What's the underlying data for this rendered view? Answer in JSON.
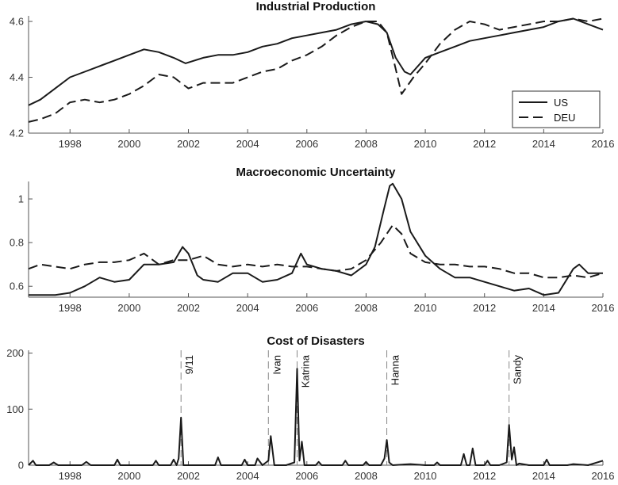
{
  "chart_data": [
    {
      "type": "line",
      "title": "Industrial Production",
      "xlim": [
        1996.6,
        2016.0
      ],
      "ylim": [
        4.2,
        4.62
      ],
      "xticks": [
        1998,
        2000,
        2002,
        2004,
        2006,
        2008,
        2010,
        2012,
        2014,
        2016
      ],
      "yticks": [
        4.2,
        4.4,
        4.6
      ],
      "ytick_labels": [
        "4.2",
        "4.4",
        "4.6"
      ],
      "legend": {
        "position": "bottom-right",
        "entries": [
          "US",
          "DEU"
        ]
      },
      "series": [
        {
          "name": "US",
          "style": "solid",
          "x": [
            1996.6,
            1997.0,
            1997.5,
            1998.0,
            1998.5,
            1999.0,
            1999.5,
            2000.0,
            2000.5,
            2001.0,
            2001.5,
            2001.9,
            2002.5,
            2003.0,
            2003.5,
            2004.0,
            2004.5,
            2005.0,
            2005.5,
            2006.0,
            2006.5,
            2007.0,
            2007.5,
            2008.0,
            2008.4,
            2008.7,
            2009.0,
            2009.3,
            2009.5,
            2010.0,
            2010.5,
            2011.0,
            2011.5,
            2012.0,
            2012.5,
            2013.0,
            2013.5,
            2014.0,
            2014.5,
            2015.0,
            2015.5,
            2016.0
          ],
          "values": [
            4.3,
            4.32,
            4.36,
            4.4,
            4.42,
            4.44,
            4.46,
            4.48,
            4.5,
            4.49,
            4.47,
            4.45,
            4.47,
            4.48,
            4.48,
            4.49,
            4.51,
            4.52,
            4.54,
            4.55,
            4.56,
            4.57,
            4.59,
            4.6,
            4.59,
            4.56,
            4.47,
            4.42,
            4.41,
            4.47,
            4.49,
            4.51,
            4.53,
            4.54,
            4.55,
            4.56,
            4.57,
            4.58,
            4.6,
            4.61,
            4.59,
            4.57
          ]
        },
        {
          "name": "DEU",
          "style": "dashed",
          "x": [
            1996.6,
            1997.0,
            1997.5,
            1998.0,
            1998.5,
            1999.0,
            1999.5,
            2000.0,
            2000.5,
            2001.0,
            2001.5,
            2002.0,
            2002.5,
            2003.0,
            2003.5,
            2004.0,
            2004.5,
            2005.0,
            2005.5,
            2006.0,
            2006.5,
            2007.0,
            2007.5,
            2008.0,
            2008.4,
            2008.7,
            2009.0,
            2009.2,
            2009.4,
            2009.6,
            2010.0,
            2010.5,
            2011.0,
            2011.5,
            2012.0,
            2012.5,
            2013.0,
            2013.5,
            2014.0,
            2014.5,
            2015.0,
            2015.5,
            2016.0
          ],
          "values": [
            4.24,
            4.25,
            4.27,
            4.31,
            4.32,
            4.31,
            4.32,
            4.34,
            4.37,
            4.41,
            4.4,
            4.36,
            4.38,
            4.38,
            4.38,
            4.4,
            4.42,
            4.43,
            4.46,
            4.48,
            4.51,
            4.55,
            4.58,
            4.6,
            4.6,
            4.56,
            4.43,
            4.34,
            4.37,
            4.4,
            4.45,
            4.52,
            4.57,
            4.6,
            4.59,
            4.57,
            4.58,
            4.59,
            4.6,
            4.6,
            4.61,
            4.6,
            4.61
          ]
        }
      ]
    },
    {
      "type": "line",
      "title": "Macroeconomic Uncertainty",
      "xlim": [
        1996.6,
        2016.0
      ],
      "ylim": [
        0.55,
        1.08
      ],
      "xticks": [
        1998,
        2000,
        2002,
        2004,
        2006,
        2008,
        2010,
        2012,
        2014,
        2016
      ],
      "yticks": [
        0.6,
        0.8,
        1.0
      ],
      "ytick_labels": [
        "0.6",
        "0.8",
        "1"
      ],
      "series": [
        {
          "name": "US",
          "style": "solid",
          "x": [
            1996.6,
            1997.0,
            1997.5,
            1998.0,
            1998.5,
            1999.0,
            1999.5,
            2000.0,
            2000.5,
            2001.0,
            2001.5,
            2001.8,
            2002.0,
            2002.3,
            2002.5,
            2003.0,
            2003.5,
            2004.0,
            2004.5,
            2005.0,
            2005.5,
            2005.8,
            2006.0,
            2006.5,
            2007.0,
            2007.5,
            2008.0,
            2008.3,
            2008.6,
            2008.8,
            2008.9,
            2009.2,
            2009.5,
            2010.0,
            2010.5,
            2011.0,
            2011.5,
            2012.0,
            2012.5,
            2013.0,
            2013.5,
            2014.0,
            2014.5,
            2015.0,
            2015.2,
            2015.5,
            2016.0
          ],
          "values": [
            0.56,
            0.56,
            0.56,
            0.57,
            0.6,
            0.64,
            0.62,
            0.63,
            0.7,
            0.7,
            0.71,
            0.78,
            0.75,
            0.65,
            0.63,
            0.62,
            0.66,
            0.66,
            0.62,
            0.63,
            0.66,
            0.75,
            0.7,
            0.68,
            0.67,
            0.65,
            0.7,
            0.78,
            0.95,
            1.06,
            1.07,
            1.0,
            0.85,
            0.74,
            0.68,
            0.64,
            0.64,
            0.62,
            0.6,
            0.58,
            0.59,
            0.56,
            0.57,
            0.68,
            0.7,
            0.66,
            0.66
          ]
        },
        {
          "name": "DEU",
          "style": "dashed",
          "x": [
            1996.6,
            1997.0,
            1997.5,
            1998.0,
            1998.5,
            1999.0,
            1999.5,
            2000.0,
            2000.5,
            2001.0,
            2001.5,
            2002.0,
            2002.5,
            2003.0,
            2003.5,
            2004.0,
            2004.5,
            2005.0,
            2005.5,
            2006.0,
            2006.5,
            2007.0,
            2007.5,
            2008.0,
            2008.5,
            2008.9,
            2009.2,
            2009.5,
            2010.0,
            2010.5,
            2011.0,
            2011.5,
            2012.0,
            2012.5,
            2013.0,
            2013.5,
            2014.0,
            2014.5,
            2015.0,
            2015.5,
            2016.0
          ],
          "values": [
            0.68,
            0.7,
            0.69,
            0.68,
            0.7,
            0.71,
            0.71,
            0.72,
            0.75,
            0.7,
            0.72,
            0.72,
            0.74,
            0.7,
            0.69,
            0.7,
            0.69,
            0.7,
            0.69,
            0.69,
            0.68,
            0.67,
            0.68,
            0.72,
            0.8,
            0.88,
            0.84,
            0.75,
            0.71,
            0.7,
            0.7,
            0.69,
            0.69,
            0.68,
            0.66,
            0.66,
            0.64,
            0.64,
            0.65,
            0.64,
            0.66
          ]
        }
      ]
    },
    {
      "type": "line",
      "title": "Cost of Disasters",
      "xlim": [
        1996.6,
        2016.0
      ],
      "ylim": [
        0,
        205
      ],
      "xticks": [
        1998,
        2000,
        2002,
        2004,
        2006,
        2008,
        2010,
        2012,
        2014,
        2016
      ],
      "yticks": [
        0,
        100,
        200
      ],
      "ytick_labels": [
        "0",
        "100",
        "200"
      ],
      "annotations": [
        {
          "label": "9/11",
          "x": 2001.75
        },
        {
          "label": "Ivan",
          "x": 2004.7
        },
        {
          "label": "Katrina",
          "x": 2005.67
        },
        {
          "label": "Hanna",
          "x": 2008.7
        },
        {
          "label": "Sandy",
          "x": 2012.83
        }
      ],
      "series": [
        {
          "name": "Cost of Disasters",
          "style": "solid",
          "x": [
            1996.6,
            1996.75,
            1996.85,
            1997.3,
            1997.45,
            1997.6,
            1998.0,
            1998.4,
            1998.55,
            1998.7,
            1999.3,
            1999.5,
            1999.6,
            1999.7,
            2000.3,
            2000.8,
            2000.9,
            2001.0,
            2001.4,
            2001.5,
            2001.6,
            2001.67,
            2001.75,
            2001.83,
            2002.3,
            2002.9,
            2003.0,
            2003.1,
            2003.7,
            2003.8,
            2003.9,
            2004.0,
            2004.25,
            2004.33,
            2004.5,
            2004.7,
            2004.78,
            2004.9,
            2005.3,
            2005.58,
            2005.67,
            2005.75,
            2005.83,
            2005.92,
            2006.3,
            2006.4,
            2006.5,
            2007.2,
            2007.3,
            2007.4,
            2007.9,
            2008.0,
            2008.1,
            2008.5,
            2008.62,
            2008.7,
            2008.78,
            2008.9,
            2009.5,
            2010.0,
            2010.3,
            2010.4,
            2010.5,
            2011.0,
            2011.2,
            2011.3,
            2011.4,
            2011.5,
            2011.6,
            2011.7,
            2012.0,
            2012.1,
            2012.2,
            2012.5,
            2012.75,
            2012.83,
            2012.92,
            2013.0,
            2013.08,
            2013.17,
            2013.5,
            2014.0,
            2014.1,
            2014.2,
            2014.8,
            2015.0,
            2015.5,
            2016.0
          ],
          "values": [
            0,
            8,
            0,
            0,
            5,
            0,
            0,
            0,
            6,
            0,
            0,
            0,
            10,
            0,
            0,
            0,
            8,
            0,
            0,
            10,
            0,
            12,
            85,
            0,
            0,
            0,
            14,
            0,
            0,
            0,
            10,
            0,
            0,
            12,
            0,
            8,
            52,
            0,
            0,
            5,
            172,
            8,
            42,
            0,
            0,
            6,
            0,
            0,
            8,
            0,
            0,
            6,
            0,
            0,
            12,
            45,
            5,
            0,
            2,
            0,
            0,
            5,
            0,
            0,
            0,
            20,
            0,
            0,
            30,
            0,
            0,
            8,
            0,
            0,
            5,
            72,
            10,
            32,
            0,
            3,
            0,
            0,
            10,
            0,
            0,
            2,
            0,
            8
          ]
        }
      ]
    }
  ]
}
